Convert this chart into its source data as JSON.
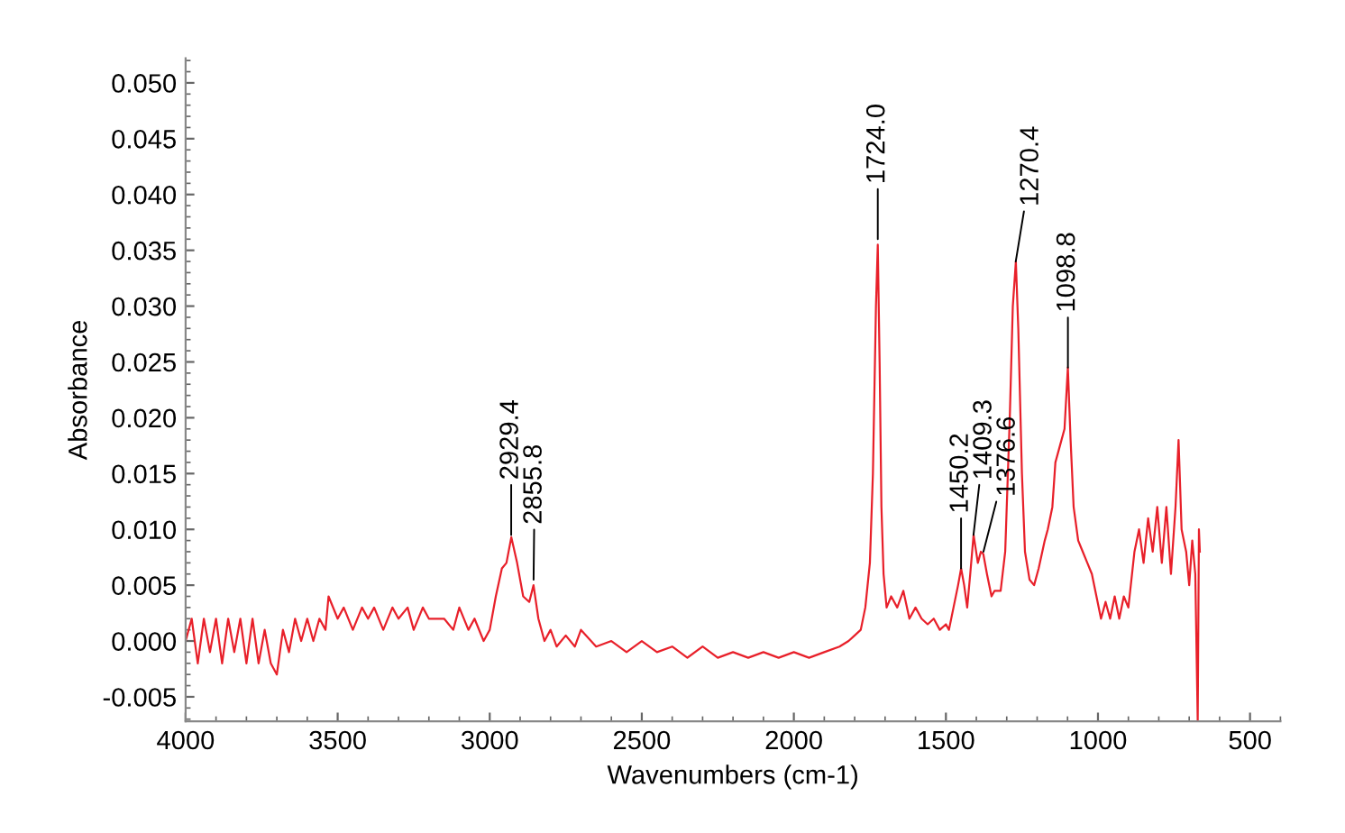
{
  "chart_data": {
    "type": "line",
    "xlabel": "Wavenumbers (cm-1)",
    "ylabel": "Absorbance",
    "xlim": [
      4000,
      400
    ],
    "ylim": [
      -0.0072,
      0.0522
    ],
    "xticks": [
      4000,
      3500,
      3000,
      2500,
      2000,
      1500,
      1000,
      500
    ],
    "yticks": [
      {
        "value": -0.005,
        "label": "-0.005"
      },
      {
        "value": 0,
        "label": "0.000"
      },
      {
        "value": 0.005,
        "label": "0.005"
      },
      {
        "value": 0.01,
        "label": "0.010"
      },
      {
        "value": 0.015,
        "label": "0.015"
      },
      {
        "value": 0.02,
        "label": "0.020"
      },
      {
        "value": 0.025,
        "label": "0.025"
      },
      {
        "value": 0.03,
        "label": "0.030"
      },
      {
        "value": 0.035,
        "label": "0.035"
      },
      {
        "value": 0.04,
        "label": "0.040"
      },
      {
        "value": 0.045,
        "label": "0.045"
      },
      {
        "value": 0.05,
        "label": "0.050"
      }
    ],
    "grid": false,
    "legend": false,
    "marker": "none",
    "line_style": "solid",
    "series": [
      {
        "color": "#e8202a",
        "x": [
          4000,
          3980,
          3960,
          3940,
          3920,
          3900,
          3880,
          3860,
          3840,
          3820,
          3800,
          3780,
          3760,
          3740,
          3720,
          3700,
          3680,
          3660,
          3640,
          3620,
          3600,
          3580,
          3560,
          3540,
          3530,
          3500,
          3480,
          3450,
          3420,
          3400,
          3380,
          3350,
          3320,
          3300,
          3270,
          3250,
          3220,
          3200,
          3150,
          3120,
          3100,
          3070,
          3050,
          3020,
          3000,
          2980,
          2960,
          2945,
          2929,
          2910,
          2890,
          2870,
          2856,
          2840,
          2820,
          2800,
          2780,
          2750,
          2720,
          2700,
          2650,
          2600,
          2550,
          2500,
          2450,
          2400,
          2350,
          2300,
          2250,
          2200,
          2150,
          2100,
          2050,
          2000,
          1950,
          1900,
          1850,
          1820,
          1800,
          1780,
          1765,
          1750,
          1740,
          1730,
          1724,
          1718,
          1712,
          1705,
          1695,
          1680,
          1660,
          1640,
          1620,
          1600,
          1580,
          1560,
          1540,
          1520,
          1500,
          1490,
          1475,
          1460,
          1450,
          1440,
          1430,
          1420,
          1409,
          1395,
          1385,
          1377,
          1365,
          1350,
          1340,
          1320,
          1305,
          1290,
          1280,
          1270,
          1262,
          1250,
          1240,
          1225,
          1210,
          1195,
          1175,
          1165,
          1150,
          1140,
          1125,
          1110,
          1099,
          1090,
          1080,
          1065,
          1050,
          1035,
          1020,
          1005,
          990,
          975,
          960,
          945,
          930,
          915,
          900,
          880,
          865,
          850,
          835,
          820,
          805,
          790,
          775,
          760,
          745,
          735,
          725,
          710,
          700,
          690,
          680,
          672,
          668,
          665
        ],
        "values": [
          0.0,
          0.002,
          -0.002,
          0.002,
          -0.001,
          0.002,
          -0.002,
          0.002,
          -0.001,
          0.002,
          -0.002,
          0.002,
          -0.002,
          0.001,
          -0.002,
          -0.003,
          0.001,
          -0.001,
          0.002,
          0.0,
          0.002,
          0.0,
          0.002,
          0.001,
          0.004,
          0.002,
          0.003,
          0.001,
          0.003,
          0.002,
          0.003,
          0.001,
          0.003,
          0.002,
          0.003,
          0.001,
          0.003,
          0.002,
          0.002,
          0.001,
          0.003,
          0.001,
          0.002,
          0.0,
          0.001,
          0.004,
          0.0065,
          0.007,
          0.0093,
          0.007,
          0.004,
          0.0035,
          0.005,
          0.002,
          0.0,
          0.001,
          -0.0005,
          0.0005,
          -0.0005,
          0.001,
          -0.0005,
          0.0,
          -0.001,
          0.0,
          -0.001,
          -0.0005,
          -0.0015,
          -0.0005,
          -0.0015,
          -0.001,
          -0.0015,
          -0.001,
          -0.0015,
          -0.001,
          -0.0015,
          -0.001,
          -0.0005,
          0.0,
          0.0005,
          0.001,
          0.003,
          0.007,
          0.015,
          0.03,
          0.0355,
          0.025,
          0.012,
          0.006,
          0.003,
          0.004,
          0.003,
          0.0045,
          0.002,
          0.003,
          0.002,
          0.0015,
          0.002,
          0.001,
          0.0015,
          0.001,
          0.003,
          0.005,
          0.0065,
          0.005,
          0.003,
          0.006,
          0.0095,
          0.007,
          0.008,
          0.0078,
          0.006,
          0.004,
          0.0045,
          0.0045,
          0.008,
          0.02,
          0.03,
          0.034,
          0.028,
          0.015,
          0.008,
          0.0055,
          0.005,
          0.0065,
          0.009,
          0.01,
          0.012,
          0.016,
          0.0175,
          0.019,
          0.0245,
          0.018,
          0.012,
          0.009,
          0.008,
          0.007,
          0.006,
          0.004,
          0.002,
          0.0035,
          0.002,
          0.004,
          0.002,
          0.004,
          0.003,
          0.008,
          0.01,
          0.007,
          0.011,
          0.008,
          0.012,
          0.007,
          0.012,
          0.006,
          0.012,
          0.018,
          0.01,
          0.008,
          0.005,
          0.009,
          0.006,
          -0.0072,
          0.01,
          0.008
        ]
      }
    ],
    "annotations": [
      {
        "text": "2929.4",
        "x": 2929.4,
        "y": 0.0095
      },
      {
        "text": "2855.8",
        "x": 2855.8,
        "y": 0.0055
      },
      {
        "text": "1724.0",
        "x": 1724.0,
        "y": 0.036
      },
      {
        "text": "1450.2",
        "x": 1450.2,
        "y": 0.0065
      },
      {
        "text": "1409.3",
        "x": 1409.3,
        "y": 0.0095
      },
      {
        "text": "1376.6",
        "x": 1376.6,
        "y": 0.008
      },
      {
        "text": "1270.4",
        "x": 1270.4,
        "y": 0.034
      },
      {
        "text": "1098.8",
        "x": 1098.8,
        "y": 0.0245
      }
    ]
  }
}
